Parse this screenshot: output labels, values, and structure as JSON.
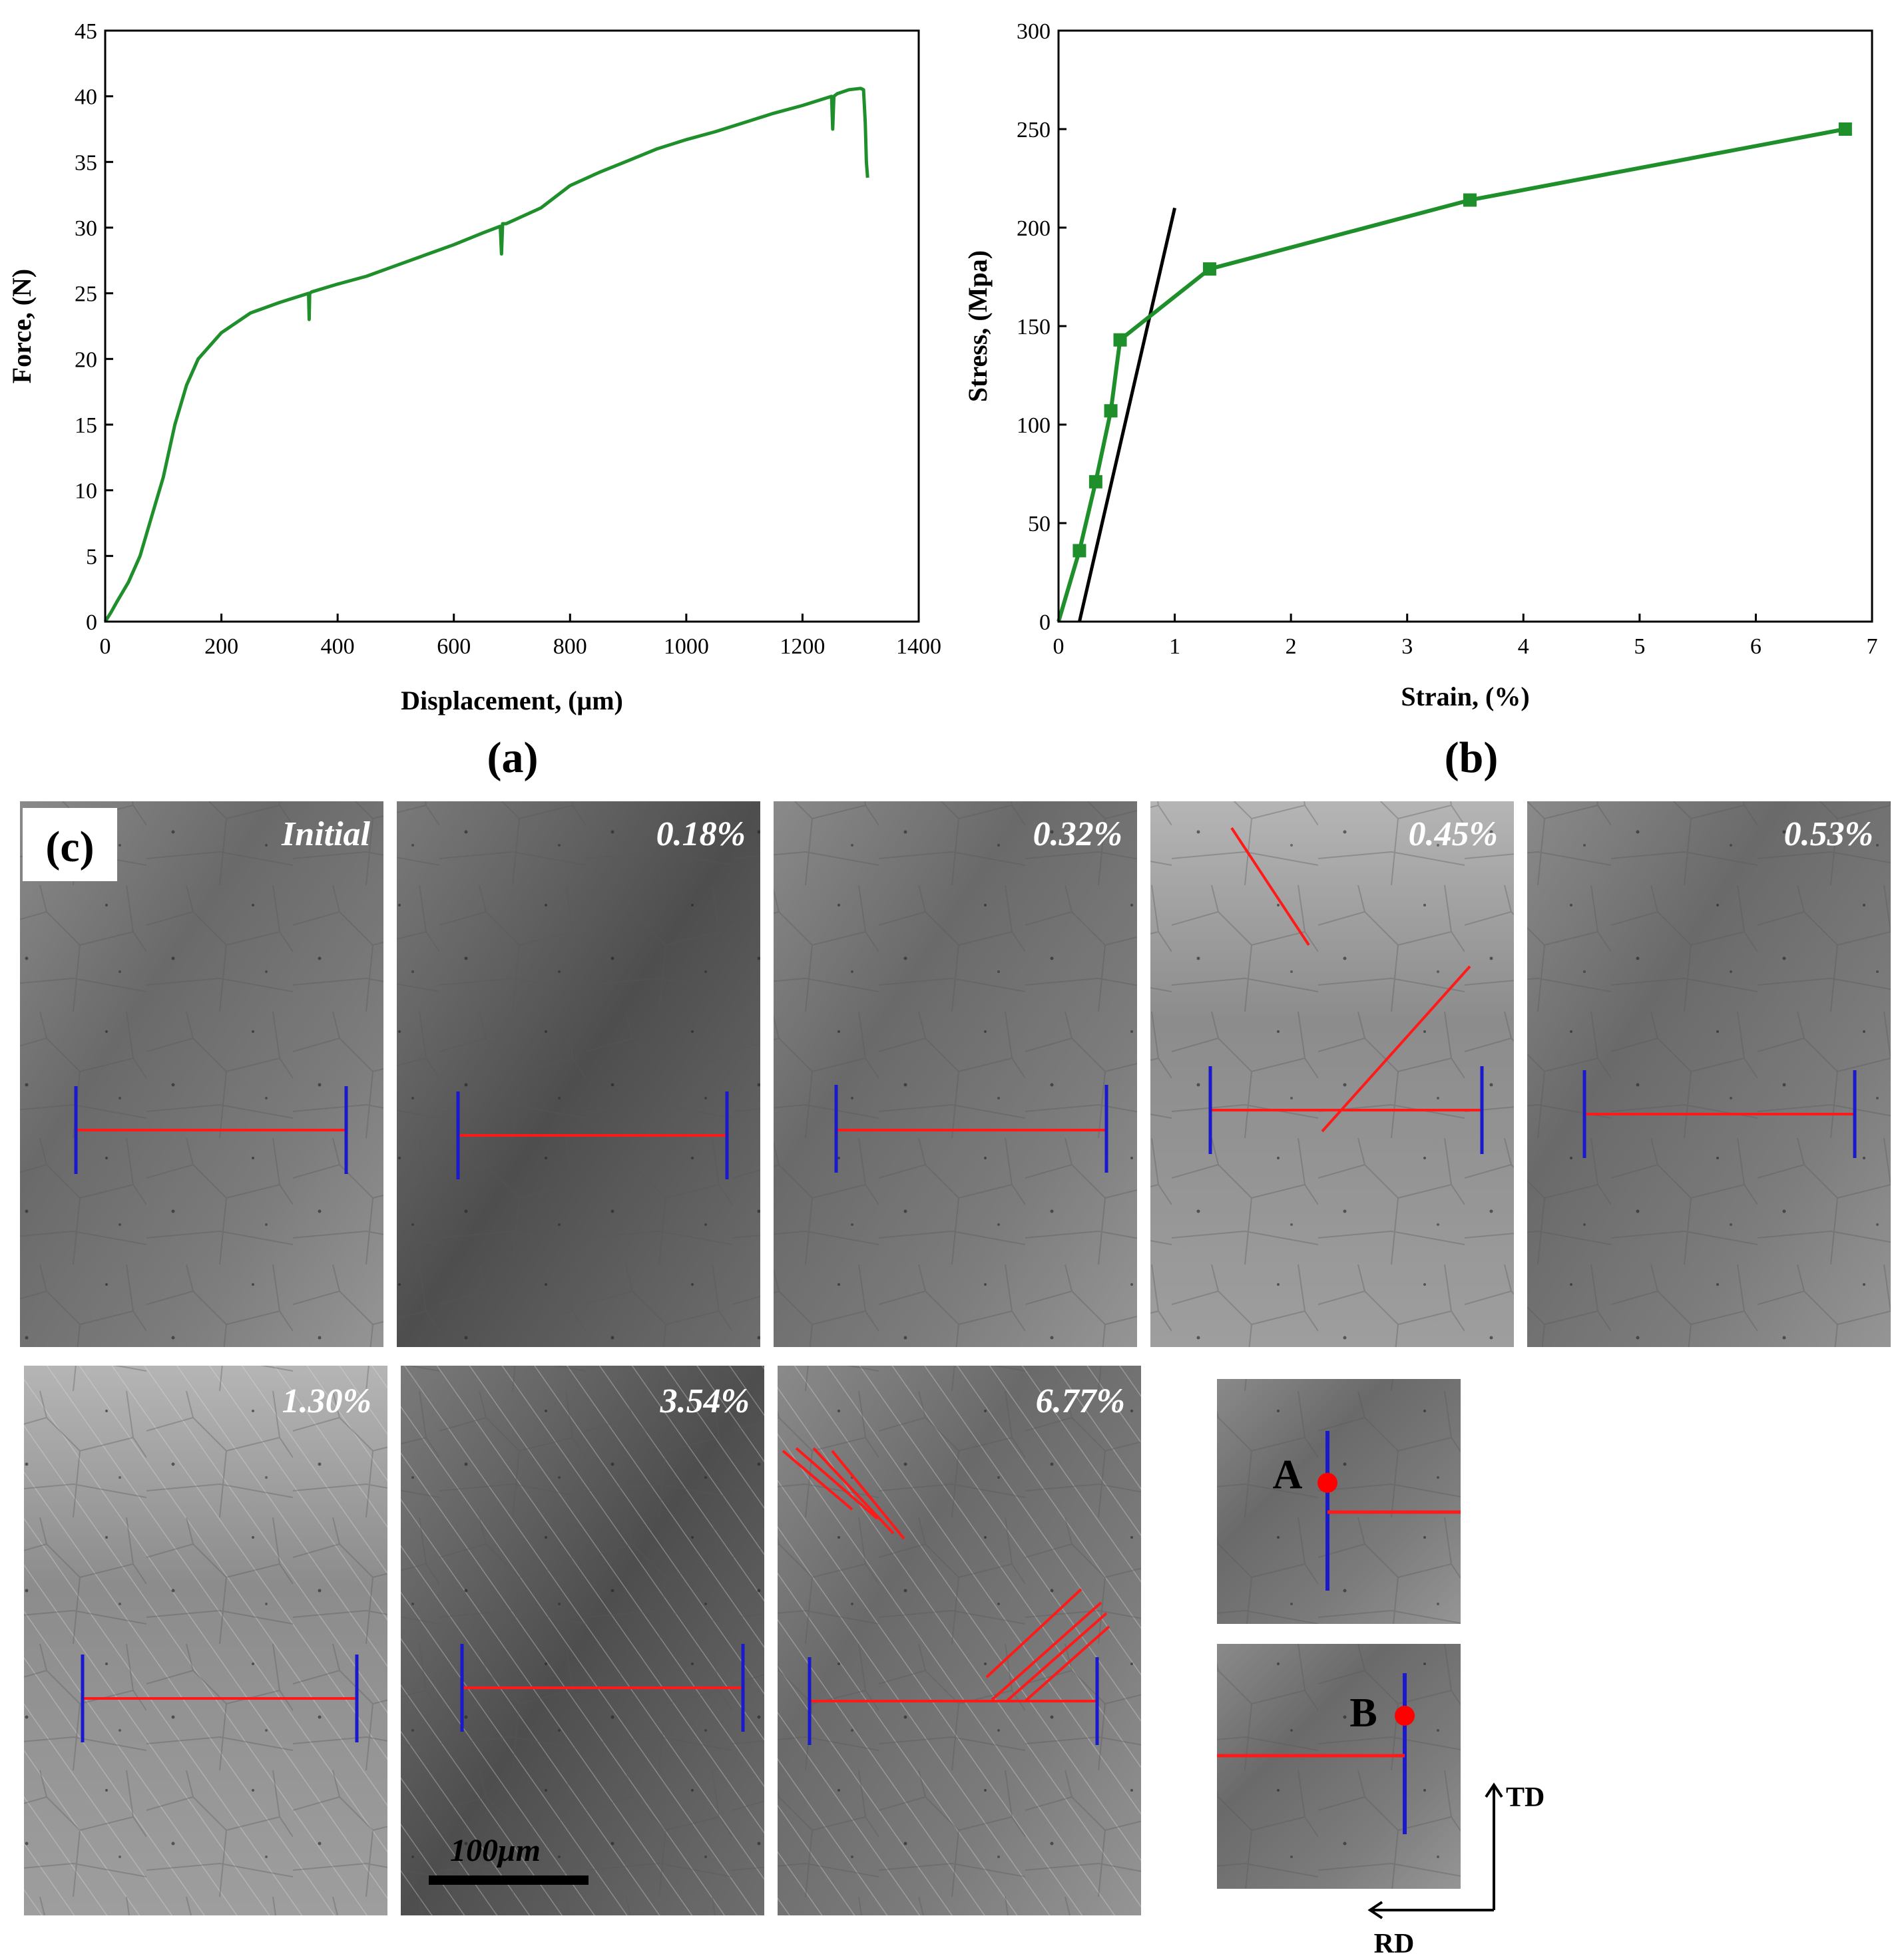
{
  "colors": {
    "curve": "#1e8f2a",
    "fit_line": "#000000",
    "measure_line": "#ff1a1a",
    "gauge_bar": "#1a1acc",
    "point": "#ff0000",
    "micrograph_dark": "#5a5a5a",
    "micrograph_light": "#9a9a9a"
  },
  "chart_data": [
    {
      "panel": "(a)",
      "type": "line",
      "xlabel": "Displacement, (μm)",
      "ylabel": "Force, (N)",
      "xlim": [
        0,
        1400
      ],
      "ylim": [
        0,
        45
      ],
      "xticks": [
        0,
        200,
        400,
        600,
        800,
        1000,
        1200,
        1400
      ],
      "yticks": [
        0,
        5,
        10,
        15,
        20,
        25,
        30,
        35,
        40,
        45
      ],
      "grid": false,
      "series": [
        {
          "name": "force-displacement",
          "x": [
            0,
            10,
            20,
            40,
            60,
            80,
            100,
            120,
            140,
            160,
            170,
            200,
            250,
            300,
            350,
            351,
            352,
            355,
            400,
            450,
            500,
            550,
            600,
            650,
            680,
            682,
            684,
            690,
            750,
            800,
            850,
            900,
            950,
            1000,
            1050,
            1100,
            1150,
            1200,
            1250,
            1252,
            1254,
            1260,
            1280,
            1300,
            1305,
            1308,
            1310,
            1312
          ],
          "y": [
            0,
            0.7,
            1.5,
            3,
            5,
            8,
            11,
            15,
            18,
            20,
            20.5,
            22,
            23.5,
            24.3,
            25,
            23,
            25,
            25.1,
            25.7,
            26.3,
            27.1,
            27.9,
            28.7,
            29.6,
            30.1,
            28,
            30.3,
            30.3,
            31.5,
            33.2,
            34.2,
            35.1,
            36,
            36.7,
            37.3,
            38,
            38.7,
            39.3,
            40,
            37.5,
            40,
            40.2,
            40.5,
            40.6,
            40.5,
            38,
            35,
            33.8
          ]
        }
      ]
    },
    {
      "panel": "(b)",
      "type": "line",
      "xlabel": "Strain, (%)",
      "ylabel": "Stress, (Mpa)",
      "xlim": [
        0,
        7
      ],
      "ylim": [
        0,
        300
      ],
      "xticks": [
        0,
        1,
        2,
        3,
        4,
        5,
        6,
        7
      ],
      "yticks": [
        0,
        50,
        100,
        150,
        200,
        250,
        300
      ],
      "grid": false,
      "series": [
        {
          "name": "stress-strain",
          "marker": "square",
          "x": [
            0,
            0.18,
            0.32,
            0.45,
            0.53,
            1.3,
            3.54,
            6.77
          ],
          "y": [
            0,
            36,
            71,
            107,
            143,
            179,
            214,
            250
          ]
        },
        {
          "name": "offset-line",
          "marker": "none",
          "x": [
            0.18,
            1.0
          ],
          "y": [
            0,
            210
          ]
        }
      ]
    }
  ],
  "panel_c": {
    "label": "(c)",
    "strain_labels": [
      "Initial",
      "0.18%",
      "0.32%",
      "0.45%",
      "0.53%",
      "1.30%",
      "3.54%",
      "6.77%"
    ],
    "scale_bar": "100μm",
    "point_a": "A",
    "point_b": "B",
    "td": "TD",
    "rd": "RD"
  }
}
